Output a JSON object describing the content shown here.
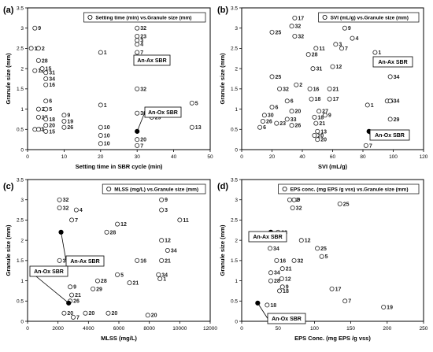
{
  "chart_data": [
    {
      "type": "scatter",
      "panel": "(a)",
      "xlabel": "Setting time in SBR cycle (min)",
      "ylabel": "Granule size (mm)",
      "legend": "Setting time (min) vs.Granule size (mm)",
      "xlim": [
        0,
        50
      ],
      "ylim": [
        0,
        3.5
      ],
      "xticks": [
        0,
        10,
        20,
        30,
        40,
        50
      ],
      "yticks": [
        0,
        0.5,
        1,
        1.5,
        2,
        2.5,
        3,
        3.5
      ],
      "points": [
        {
          "x": 2,
          "y": 3.0,
          "label": "9"
        },
        {
          "x": 1,
          "y": 2.5,
          "label": "11"
        },
        {
          "x": 3,
          "y": 2.5,
          "label": "2"
        },
        {
          "x": 3,
          "y": 2.2,
          "label": "28"
        },
        {
          "x": 2,
          "y": 1.95,
          "label": "12"
        },
        {
          "x": 4,
          "y": 2.0,
          "label": "15"
        },
        {
          "x": 5,
          "y": 1.9,
          "label": "31"
        },
        {
          "x": 5,
          "y": 1.75,
          "label": "34"
        },
        {
          "x": 5,
          "y": 1.6,
          "label": "16"
        },
        {
          "x": 5,
          "y": 1.2,
          "label": "6"
        },
        {
          "x": 3,
          "y": 1.0,
          "label": "28"
        },
        {
          "x": 5,
          "y": 1.0,
          "label": "5"
        },
        {
          "x": 3,
          "y": 0.8,
          "label": "27"
        },
        {
          "x": 5,
          "y": 0.75,
          "label": "18"
        },
        {
          "x": 5,
          "y": 0.6,
          "label": "20"
        },
        {
          "x": 2,
          "y": 0.5,
          "label": "23"
        },
        {
          "x": 3,
          "y": 0.5,
          "label": "1"
        },
        {
          "x": 5,
          "y": 0.45,
          "label": "15"
        },
        {
          "x": 10,
          "y": 0.85,
          "label": "9"
        },
        {
          "x": 10,
          "y": 0.7,
          "label": "19"
        },
        {
          "x": 10,
          "y": 0.55,
          "label": "26"
        },
        {
          "x": 20,
          "y": 2.4,
          "label": "1"
        },
        {
          "x": 20,
          "y": 1.1,
          "label": "1"
        },
        {
          "x": 20,
          "y": 0.55,
          "label": "10"
        },
        {
          "x": 20,
          "y": 0.35,
          "label": "10"
        },
        {
          "x": 20,
          "y": 0.15,
          "label": "10"
        },
        {
          "x": 30,
          "y": 3.0,
          "label": "32"
        },
        {
          "x": 30,
          "y": 2.8,
          "label": "23"
        },
        {
          "x": 30,
          "y": 2.7,
          "label": "3"
        },
        {
          "x": 30,
          "y": 2.6,
          "label": "4"
        },
        {
          "x": 30,
          "y": 2.4,
          "label": "7"
        },
        {
          "x": 30,
          "y": 1.5,
          "label": "32"
        },
        {
          "x": 30,
          "y": 0.9,
          "label": "30"
        },
        {
          "x": 30,
          "y": 0.25,
          "label": "20"
        },
        {
          "x": 30,
          "y": 0.1,
          "label": "7"
        },
        {
          "x": 34,
          "y": 0.8,
          "label": "29"
        },
        {
          "x": 45,
          "y": 1.15,
          "label": "5"
        },
        {
          "x": 45,
          "y": 0.55,
          "label": "13"
        }
      ],
      "highlights": [
        {
          "x": 30,
          "y": 2.2,
          "label": "An-Ax SBR"
        },
        {
          "x": 30,
          "y": 0.45,
          "label": "An-Ox SBR"
        }
      ]
    },
    {
      "type": "scatter",
      "panel": "(b)",
      "xlabel": "SVI (mL/g)",
      "ylabel": "Granule size (mm)",
      "legend": "SVI (mL/g) vs.Granule size (mm)",
      "xlim": [
        0,
        120
      ],
      "ylim": [
        0,
        3.5
      ],
      "xticks": [
        0,
        20,
        40,
        60,
        80,
        100,
        120
      ],
      "yticks": [
        0,
        0.5,
        1,
        1.5,
        2,
        2.5,
        3,
        3.5
      ],
      "points": [
        {
          "x": 35,
          "y": 3.25,
          "label": "17"
        },
        {
          "x": 33,
          "y": 3.05,
          "label": "32"
        },
        {
          "x": 20,
          "y": 2.9,
          "label": "25"
        },
        {
          "x": 35,
          "y": 2.8,
          "label": "32"
        },
        {
          "x": 68,
          "y": 3.0,
          "label": "9"
        },
        {
          "x": 73,
          "y": 2.75,
          "label": "4"
        },
        {
          "x": 49,
          "y": 2.5,
          "label": "11"
        },
        {
          "x": 62,
          "y": 2.6,
          "label": "3"
        },
        {
          "x": 66,
          "y": 2.5,
          "label": "7"
        },
        {
          "x": 44,
          "y": 2.35,
          "label": "28"
        },
        {
          "x": 47,
          "y": 2.0,
          "label": "31"
        },
        {
          "x": 60,
          "y": 2.05,
          "label": "12"
        },
        {
          "x": 20,
          "y": 1.8,
          "label": "25"
        },
        {
          "x": 25,
          "y": 1.5,
          "label": "32"
        },
        {
          "x": 30,
          "y": 1.2,
          "label": "6"
        },
        {
          "x": 36,
          "y": 1.6,
          "label": "2"
        },
        {
          "x": 45,
          "y": 1.5,
          "label": "16"
        },
        {
          "x": 58,
          "y": 1.5,
          "label": "21"
        },
        {
          "x": 46,
          "y": 1.25,
          "label": "18"
        },
        {
          "x": 58,
          "y": 1.25,
          "label": "17"
        },
        {
          "x": 20,
          "y": 1.05,
          "label": "6"
        },
        {
          "x": 33,
          "y": 0.95,
          "label": "20"
        },
        {
          "x": 15,
          "y": 0.85,
          "label": "30"
        },
        {
          "x": 14,
          "y": 0.7,
          "label": "26"
        },
        {
          "x": 30,
          "y": 0.75,
          "label": "33"
        },
        {
          "x": 23,
          "y": 0.65,
          "label": "23"
        },
        {
          "x": 33,
          "y": 0.6,
          "label": "26"
        },
        {
          "x": 48,
          "y": 0.8,
          "label": "18"
        },
        {
          "x": 12,
          "y": 0.55,
          "label": "6"
        },
        {
          "x": 55,
          "y": 0.85,
          "label": "9"
        },
        {
          "x": 51,
          "y": 0.95,
          "label": "27"
        },
        {
          "x": 49,
          "y": 0.65,
          "label": "21"
        },
        {
          "x": 50,
          "y": 0.45,
          "label": "13"
        },
        {
          "x": 48,
          "y": 0.35,
          "label": "20"
        },
        {
          "x": 50,
          "y": 0.25,
          "label": "20"
        },
        {
          "x": 88,
          "y": 2.4,
          "label": "1"
        },
        {
          "x": 98,
          "y": 1.8,
          "label": "34"
        },
        {
          "x": 83,
          "y": 1.1,
          "label": "1"
        },
        {
          "x": 96,
          "y": 1.2,
          "label": "5"
        },
        {
          "x": 98,
          "y": 1.2,
          "label": "34"
        },
        {
          "x": 98,
          "y": 0.75,
          "label": "29"
        },
        {
          "x": 82,
          "y": 0.1,
          "label": "7"
        }
      ],
      "highlights": [
        {
          "x": 95,
          "y": 2.2,
          "label": "An-Ax SBR"
        },
        {
          "x": 84,
          "y": 0.45,
          "label": "An-Ox SBR"
        }
      ]
    },
    {
      "type": "scatter",
      "panel": "(c)",
      "xlabel": "MLSS (mg/L)",
      "ylabel": "Granule size (mm)",
      "legend": "MLSS (mg/L) vs.Granule size (mm)",
      "xlim": [
        0,
        12000
      ],
      "ylim": [
        0,
        3.5
      ],
      "xticks": [
        0,
        2000,
        4000,
        6000,
        8000,
        10000,
        12000
      ],
      "yticks": [
        0,
        0.5,
        1,
        1.5,
        2,
        2.5,
        3,
        3.5
      ],
      "points": [
        {
          "x": 2100,
          "y": 3.0,
          "label": "32"
        },
        {
          "x": 2100,
          "y": 2.8,
          "label": "32"
        },
        {
          "x": 3200,
          "y": 2.75,
          "label": "4"
        },
        {
          "x": 2900,
          "y": 2.5,
          "label": "7"
        },
        {
          "x": 8800,
          "y": 3.0,
          "label": "9"
        },
        {
          "x": 8800,
          "y": 2.75,
          "label": "3"
        },
        {
          "x": 10000,
          "y": 2.5,
          "label": "11"
        },
        {
          "x": 5900,
          "y": 2.4,
          "label": "12"
        },
        {
          "x": 5200,
          "y": 2.2,
          "label": "28"
        },
        {
          "x": 8800,
          "y": 2.0,
          "label": "12"
        },
        {
          "x": 9200,
          "y": 1.75,
          "label": "34"
        },
        {
          "x": 8800,
          "y": 1.5,
          "label": "21"
        },
        {
          "x": 7200,
          "y": 1.5,
          "label": "16"
        },
        {
          "x": 8600,
          "y": 1.15,
          "label": "34"
        },
        {
          "x": 8700,
          "y": 1.05,
          "label": "1"
        },
        {
          "x": 2100,
          "y": 1.5,
          "label": "32"
        },
        {
          "x": 4600,
          "y": 1.0,
          "label": "28"
        },
        {
          "x": 5900,
          "y": 1.15,
          "label": "5"
        },
        {
          "x": 6700,
          "y": 0.95,
          "label": "21"
        },
        {
          "x": 4300,
          "y": 0.8,
          "label": "29"
        },
        {
          "x": 2800,
          "y": 0.85,
          "label": "9"
        },
        {
          "x": 2900,
          "y": 0.65,
          "label": "21"
        },
        {
          "x": 2800,
          "y": 0.5,
          "label": "26"
        },
        {
          "x": 2400,
          "y": 0.2,
          "label": "20"
        },
        {
          "x": 3000,
          "y": 0.1,
          "label": "7"
        },
        {
          "x": 3800,
          "y": 0.2,
          "label": "20"
        },
        {
          "x": 5300,
          "y": 0.2,
          "label": "20"
        },
        {
          "x": 7900,
          "y": 0.15,
          "label": "20"
        }
      ],
      "highlights": [
        {
          "x": 2200,
          "y": 2.2,
          "label": "An-Ax SBR"
        },
        {
          "x": 2700,
          "y": 0.45,
          "label": "An-Ox SBR"
        }
      ]
    },
    {
      "type": "scatter",
      "panel": "(d)",
      "xlabel": "EPS Conc. (mg EPS /g vss)",
      "ylabel": "Granule size (mm)",
      "legend": "EPS conc. (mg EPS /g vss) vs.Granule size (mm)",
      "xlim": [
        0,
        250
      ],
      "ylim": [
        0,
        3.5
      ],
      "xticks": [
        0,
        50,
        100,
        150,
        200,
        250
      ],
      "yticks": [
        0,
        0.5,
        1,
        1.5,
        2,
        2.5,
        3,
        3.5
      ],
      "points": [
        {
          "x": 66,
          "y": 3.0,
          "label": "32"
        },
        {
          "x": 72,
          "y": 3.0,
          "label": "9"
        },
        {
          "x": 70,
          "y": 2.8,
          "label": "32"
        },
        {
          "x": 135,
          "y": 2.9,
          "label": "25"
        },
        {
          "x": 50,
          "y": 2.2,
          "label": "28"
        },
        {
          "x": 82,
          "y": 2.0,
          "label": "12"
        },
        {
          "x": 104,
          "y": 1.8,
          "label": "25"
        },
        {
          "x": 39,
          "y": 1.8,
          "label": "34"
        },
        {
          "x": 48,
          "y": 1.5,
          "label": "16"
        },
        {
          "x": 72,
          "y": 1.5,
          "label": "32"
        },
        {
          "x": 110,
          "y": 1.6,
          "label": "5"
        },
        {
          "x": 56,
          "y": 1.3,
          "label": "21"
        },
        {
          "x": 40,
          "y": 1.2,
          "label": "34"
        },
        {
          "x": 40,
          "y": 1.0,
          "label": "28"
        },
        {
          "x": 55,
          "y": 1.05,
          "label": "12"
        },
        {
          "x": 56,
          "y": 0.85,
          "label": "9"
        },
        {
          "x": 52,
          "y": 0.75,
          "label": "18"
        },
        {
          "x": 124,
          "y": 0.8,
          "label": "17"
        },
        {
          "x": 142,
          "y": 0.5,
          "label": "7"
        },
        {
          "x": 195,
          "y": 0.35,
          "label": "19"
        },
        {
          "x": 35,
          "y": 0.4,
          "label": "18"
        }
      ],
      "highlights": [
        {
          "x": 40,
          "y": 2.2,
          "label": "An-Ax SBR"
        },
        {
          "x": 22,
          "y": 0.45,
          "label": "An-Ox SBR"
        }
      ]
    }
  ]
}
